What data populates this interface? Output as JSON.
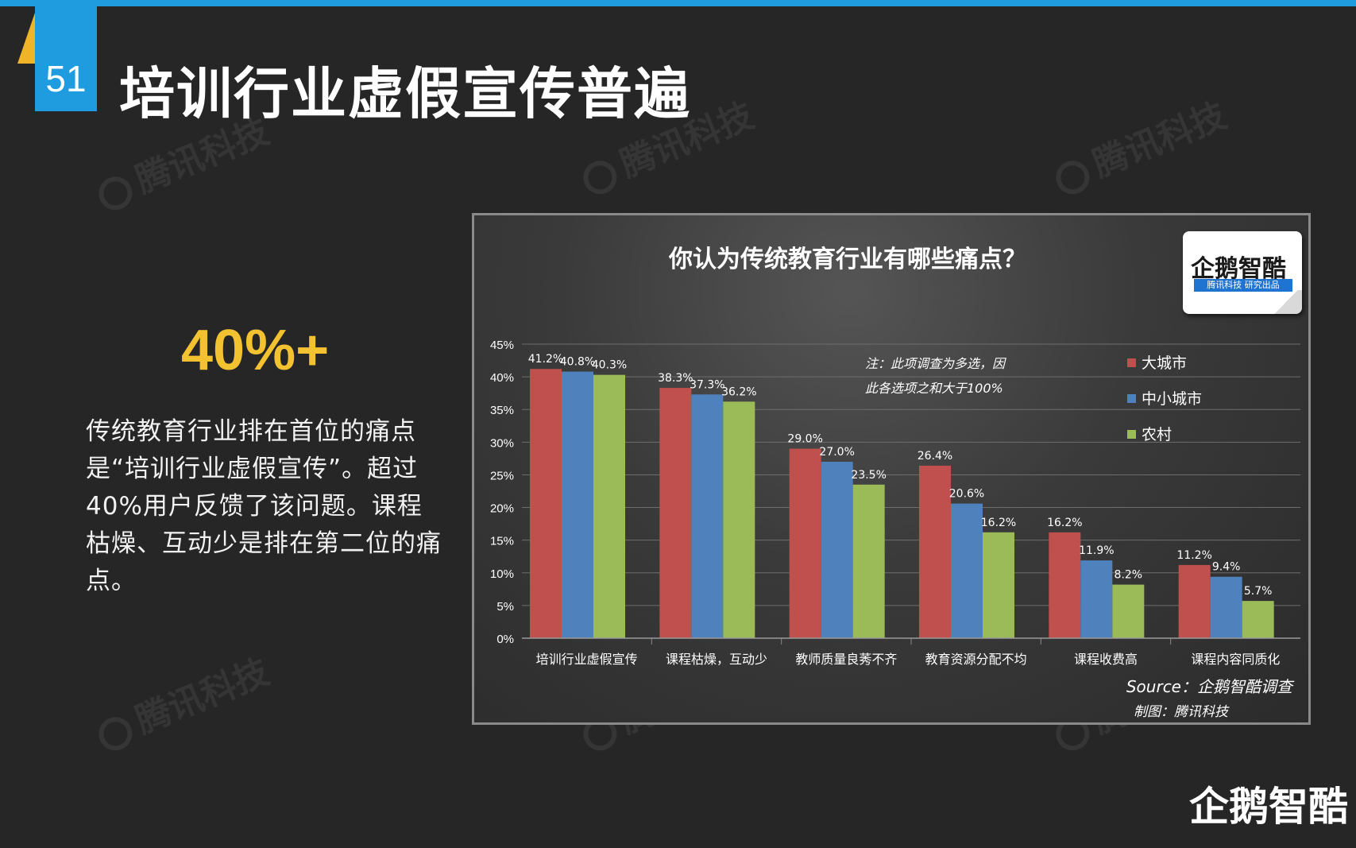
{
  "slide": {
    "number": "51",
    "title": "培训行业虚假宣传普遍",
    "big_stat": "40%+",
    "description": "传统教育行业排在首位的痛点是“培训行业虚假宣传”。超过40%用户反馈了该问题。课程枯燥、互动少是排在第二位的痛点。",
    "watermark_text": "腾讯科技",
    "footer_logo": "企鹅智酷"
  },
  "colors": {
    "accent_blue": "#1f9be0",
    "stat_yellow": "#f2c230",
    "wedge_yellow": "#f0b429",
    "series_red": "#c0504d",
    "series_blue": "#4f81bd",
    "series_green": "#9bbb59"
  },
  "chart_data": {
    "type": "bar",
    "title": "你认为传统教育行业有哪些痛点？",
    "categories": [
      "培训行业虚假宣传",
      "课程枯燥，互动少",
      "教师质量良莠不齐",
      "教育资源分配不均",
      "课程收费高",
      "课程内容同质化"
    ],
    "series": [
      {
        "name": "大城市",
        "values": [
          41.2,
          38.3,
          29.0,
          26.4,
          16.2,
          11.2
        ],
        "labels": [
          "41.2%",
          "38.3%",
          "29.0%",
          "26.4%",
          "16.2%",
          "11.2%"
        ]
      },
      {
        "name": "中小城市",
        "values": [
          40.8,
          37.3,
          27.0,
          20.6,
          11.9,
          9.4
        ],
        "labels": [
          "40.8%",
          "37.3%",
          "27.0%",
          "20.6%",
          "11.9%",
          "9.4%"
        ]
      },
      {
        "name": "农村",
        "values": [
          40.3,
          36.2,
          23.5,
          16.2,
          8.2,
          5.7
        ],
        "labels": [
          "40.3%",
          "36.2%",
          "23.5%",
          "16.2%",
          "8.2%",
          "5.7%"
        ]
      }
    ],
    "y_ticks": [
      "0%",
      "5%",
      "10%",
      "15%",
      "20%",
      "25%",
      "30%",
      "35%",
      "40%",
      "45%"
    ],
    "ylim": [
      0,
      45
    ],
    "grid": true,
    "legend_position": "top-right",
    "note_lines": [
      "注：此项调查为多选，因",
      "此各选项之和大于100%"
    ],
    "source": "Source：企鹅智酷调查",
    "credit": "制图：腾讯科技",
    "badge": {
      "title": "企鹅智酷",
      "subtitle": "腾讯科技  研究出品"
    }
  }
}
